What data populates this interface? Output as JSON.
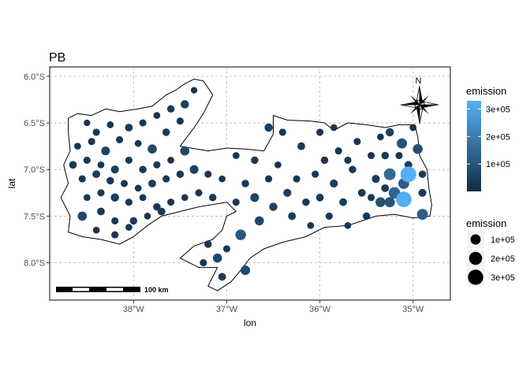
{
  "title": "PB",
  "axes": {
    "xlabel": "lon",
    "ylabel": "lat",
    "x_ticks": [
      "38°W",
      "37°W",
      "36°W",
      "35°W"
    ],
    "y_ticks": [
      "6.0°S",
      "6.5°S",
      "7.0°S",
      "7.5°S",
      "8.0°S"
    ]
  },
  "north_arrow": {
    "label": "N"
  },
  "scale_bar": {
    "label": "100 km"
  },
  "legend_color": {
    "title": "emission",
    "labels": [
      "1e+05",
      "2e+05",
      "3e+05"
    ],
    "low_color": "#132B43",
    "high_color": "#56B1F7"
  },
  "legend_size": {
    "title": "emission",
    "labels": [
      "1e+05",
      "2e+05",
      "3e+05"
    ]
  },
  "chart_data": {
    "type": "scatter",
    "title": "PB",
    "xlabel": "lon",
    "ylabel": "lat",
    "xlim": [
      -38.9,
      -34.6
    ],
    "ylim": [
      -8.4,
      -5.9
    ],
    "grid": true,
    "legend_position": "right",
    "color_scale": {
      "variable": "emission",
      "low": "#132B43",
      "high": "#56B1F7",
      "min": 0,
      "max": 330000
    },
    "size_scale": {
      "variable": "emission",
      "breaks": [
        100000,
        200000,
        300000
      ]
    },
    "boundary": [
      [
        -38.7,
        -6.45
      ],
      [
        -38.6,
        -6.4
      ],
      [
        -38.45,
        -6.42
      ],
      [
        -38.3,
        -6.35
      ],
      [
        -38.15,
        -6.38
      ],
      [
        -37.95,
        -6.35
      ],
      [
        -37.8,
        -6.32
      ],
      [
        -37.65,
        -6.2
      ],
      [
        -37.55,
        -6.15
      ],
      [
        -37.45,
        -6.08
      ],
      [
        -37.35,
        -6.03
      ],
      [
        -37.25,
        -6.05
      ],
      [
        -37.15,
        -6.2
      ],
      [
        -37.25,
        -6.4
      ],
      [
        -37.35,
        -6.55
      ],
      [
        -37.5,
        -6.75
      ],
      [
        -37.2,
        -6.8
      ],
      [
        -37.0,
        -6.77
      ],
      [
        -36.8,
        -6.78
      ],
      [
        -36.6,
        -6.8
      ],
      [
        -36.5,
        -6.62
      ],
      [
        -36.5,
        -6.42
      ],
      [
        -36.35,
        -6.47
      ],
      [
        -36.1,
        -6.48
      ],
      [
        -35.95,
        -6.5
      ],
      [
        -35.85,
        -6.58
      ],
      [
        -35.7,
        -6.5
      ],
      [
        -35.5,
        -6.52
      ],
      [
        -35.3,
        -6.55
      ],
      [
        -35.15,
        -6.52
      ],
      [
        -34.98,
        -6.52
      ],
      [
        -34.95,
        -6.65
      ],
      [
        -34.93,
        -6.85
      ],
      [
        -34.85,
        -7.0
      ],
      [
        -34.83,
        -7.2
      ],
      [
        -34.8,
        -7.38
      ],
      [
        -34.82,
        -7.5
      ],
      [
        -35.0,
        -7.52
      ],
      [
        -35.2,
        -7.48
      ],
      [
        -35.4,
        -7.5
      ],
      [
        -35.55,
        -7.55
      ],
      [
        -35.7,
        -7.6
      ],
      [
        -35.95,
        -7.62
      ],
      [
        -36.15,
        -7.72
      ],
      [
        -36.4,
        -7.78
      ],
      [
        -36.6,
        -7.85
      ],
      [
        -36.75,
        -7.95
      ],
      [
        -36.85,
        -8.08
      ],
      [
        -36.95,
        -8.2
      ],
      [
        -37.1,
        -8.3
      ],
      [
        -37.2,
        -8.25
      ],
      [
        -37.1,
        -8.05
      ],
      [
        -37.3,
        -8.05
      ],
      [
        -37.5,
        -7.95
      ],
      [
        -37.35,
        -7.82
      ],
      [
        -37.15,
        -7.75
      ],
      [
        -37.05,
        -7.65
      ],
      [
        -37.0,
        -7.5
      ],
      [
        -36.9,
        -7.45
      ],
      [
        -37.0,
        -7.35
      ],
      [
        -37.3,
        -7.4
      ],
      [
        -37.5,
        -7.45
      ],
      [
        -37.7,
        -7.5
      ],
      [
        -37.85,
        -7.6
      ],
      [
        -38.0,
        -7.72
      ],
      [
        -38.15,
        -7.8
      ],
      [
        -38.35,
        -7.75
      ],
      [
        -38.55,
        -7.72
      ],
      [
        -38.7,
        -7.67
      ],
      [
        -38.68,
        -7.5
      ],
      [
        -38.78,
        -7.3
      ],
      [
        -38.7,
        -7.15
      ],
      [
        -38.75,
        -6.95
      ],
      [
        -38.68,
        -6.8
      ],
      [
        -38.7,
        -6.6
      ]
    ],
    "points": [
      [
        -38.5,
        -6.5,
        20000
      ],
      [
        -38.4,
        -6.6,
        30000
      ],
      [
        -38.25,
        -6.52,
        25000
      ],
      [
        -38.05,
        -6.55,
        40000
      ],
      [
        -37.9,
        -6.5,
        30000
      ],
      [
        -37.75,
        -6.42,
        25000
      ],
      [
        -37.6,
        -6.35,
        35000
      ],
      [
        -37.45,
        -6.3,
        50000
      ],
      [
        -37.35,
        -6.15,
        20000
      ],
      [
        -37.5,
        -6.48,
        30000
      ],
      [
        -38.6,
        -6.75,
        25000
      ],
      [
        -38.45,
        -6.7,
        30000
      ],
      [
        -38.3,
        -6.8,
        60000
      ],
      [
        -38.15,
        -6.68,
        30000
      ],
      [
        -37.95,
        -6.72,
        25000
      ],
      [
        -37.8,
        -6.78,
        70000
      ],
      [
        -37.65,
        -6.6,
        35000
      ],
      [
        -38.65,
        -6.95,
        40000
      ],
      [
        -38.5,
        -6.9,
        30000
      ],
      [
        -38.35,
        -6.95,
        25000
      ],
      [
        -38.2,
        -7.0,
        45000
      ],
      [
        -38.05,
        -6.9,
        30000
      ],
      [
        -37.9,
        -7.0,
        35000
      ],
      [
        -37.75,
        -6.95,
        30000
      ],
      [
        -37.6,
        -6.9,
        25000
      ],
      [
        -37.45,
        -6.8,
        70000
      ],
      [
        -38.55,
        -7.1,
        30000
      ],
      [
        -38.4,
        -7.05,
        40000
      ],
      [
        -38.25,
        -7.12,
        35000
      ],
      [
        -38.1,
        -7.15,
        30000
      ],
      [
        -37.95,
        -7.2,
        25000
      ],
      [
        -37.8,
        -7.15,
        40000
      ],
      [
        -37.65,
        -7.1,
        30000
      ],
      [
        -37.5,
        -7.05,
        35000
      ],
      [
        -37.35,
        -7.0,
        60000
      ],
      [
        -37.2,
        -7.05,
        30000
      ],
      [
        -37.05,
        -7.1,
        25000
      ],
      [
        -38.5,
        -7.3,
        25000
      ],
      [
        -38.35,
        -7.25,
        30000
      ],
      [
        -38.2,
        -7.3,
        50000
      ],
      [
        -38.05,
        -7.35,
        30000
      ],
      [
        -37.9,
        -7.3,
        25000
      ],
      [
        -37.75,
        -7.4,
        35000
      ],
      [
        -37.6,
        -7.35,
        30000
      ],
      [
        -37.45,
        -7.3,
        25000
      ],
      [
        -37.3,
        -7.25,
        30000
      ],
      [
        -37.15,
        -7.3,
        35000
      ],
      [
        -38.55,
        -7.5,
        70000
      ],
      [
        -38.35,
        -7.45,
        40000
      ],
      [
        -38.2,
        -7.55,
        30000
      ],
      [
        -38.0,
        -7.55,
        35000
      ],
      [
        -37.85,
        -7.5,
        25000
      ],
      [
        -37.7,
        -7.45,
        40000
      ],
      [
        -38.4,
        -7.65,
        25000
      ],
      [
        -38.2,
        -7.7,
        30000
      ],
      [
        -38.05,
        -7.62,
        25000
      ],
      [
        -37.2,
        -7.8,
        35000
      ],
      [
        -37.1,
        -7.95,
        70000
      ],
      [
        -37.25,
        -8.0,
        30000
      ],
      [
        -36.85,
        -7.7,
        110000
      ],
      [
        -36.8,
        -8.08,
        80000
      ],
      [
        -37.0,
        -7.85,
        30000
      ],
      [
        -37.05,
        -8.15,
        40000
      ],
      [
        -36.9,
        -7.35,
        30000
      ],
      [
        -36.8,
        -7.15,
        35000
      ],
      [
        -36.7,
        -7.3,
        60000
      ],
      [
        -36.65,
        -7.55,
        70000
      ],
      [
        -36.55,
        -7.1,
        30000
      ],
      [
        -36.5,
        -7.4,
        50000
      ],
      [
        -36.45,
        -6.95,
        25000
      ],
      [
        -36.35,
        -7.25,
        45000
      ],
      [
        -36.3,
        -7.5,
        40000
      ],
      [
        -36.25,
        -7.1,
        30000
      ],
      [
        -36.15,
        -7.35,
        35000
      ],
      [
        -36.1,
        -7.6,
        25000
      ],
      [
        -36.05,
        -7.05,
        30000
      ],
      [
        -36.0,
        -7.3,
        40000
      ],
      [
        -35.95,
        -6.9,
        35000
      ],
      [
        -35.9,
        -7.5,
        30000
      ],
      [
        -35.85,
        -7.15,
        45000
      ],
      [
        -35.8,
        -6.8,
        30000
      ],
      [
        -35.75,
        -7.35,
        40000
      ],
      [
        -35.7,
        -7.6,
        25000
      ],
      [
        -35.65,
        -7.0,
        35000
      ],
      [
        -35.6,
        -6.7,
        30000
      ],
      [
        -35.55,
        -7.25,
        40000
      ],
      [
        -35.5,
        -7.5,
        35000
      ],
      [
        -35.45,
        -6.85,
        30000
      ],
      [
        -35.4,
        -7.1,
        45000
      ],
      [
        -35.35,
        -6.65,
        25000
      ],
      [
        -35.35,
        -7.35,
        35000
      ],
      [
        -36.7,
        -6.9,
        35000
      ],
      [
        -36.9,
        -6.85,
        25000
      ],
      [
        -36.4,
        -6.6,
        30000
      ],
      [
        -36.2,
        -6.75,
        40000
      ],
      [
        -36.0,
        -6.6,
        30000
      ],
      [
        -36.55,
        -6.55,
        50000
      ],
      [
        -35.85,
        -6.55,
        25000
      ],
      [
        -35.7,
        -6.9,
        30000
      ],
      [
        -35.3,
        -6.85,
        35000
      ],
      [
        -35.25,
        -7.05,
        150000
      ],
      [
        -35.05,
        -7.05,
        330000
      ],
      [
        -35.2,
        -7.25,
        140000
      ],
      [
        -35.1,
        -7.15,
        120000
      ],
      [
        -35.1,
        -7.32,
        320000
      ],
      [
        -35.25,
        -7.35,
        100000
      ],
      [
        -35.35,
        -7.35,
        90000
      ],
      [
        -34.9,
        -7.48,
        120000
      ],
      [
        -34.95,
        -6.78,
        90000
      ],
      [
        -35.12,
        -6.72,
        100000
      ],
      [
        -35.25,
        -6.6,
        50000
      ],
      [
        -35.0,
        -6.55,
        25000
      ],
      [
        -35.05,
        -6.95,
        40000
      ],
      [
        -34.9,
        -7.05,
        35000
      ],
      [
        -34.9,
        -7.25,
        45000
      ],
      [
        -35.3,
        -7.2,
        40000
      ],
      [
        -35.45,
        -7.3,
        30000
      ],
      [
        -35.15,
        -6.85,
        30000
      ]
    ]
  }
}
